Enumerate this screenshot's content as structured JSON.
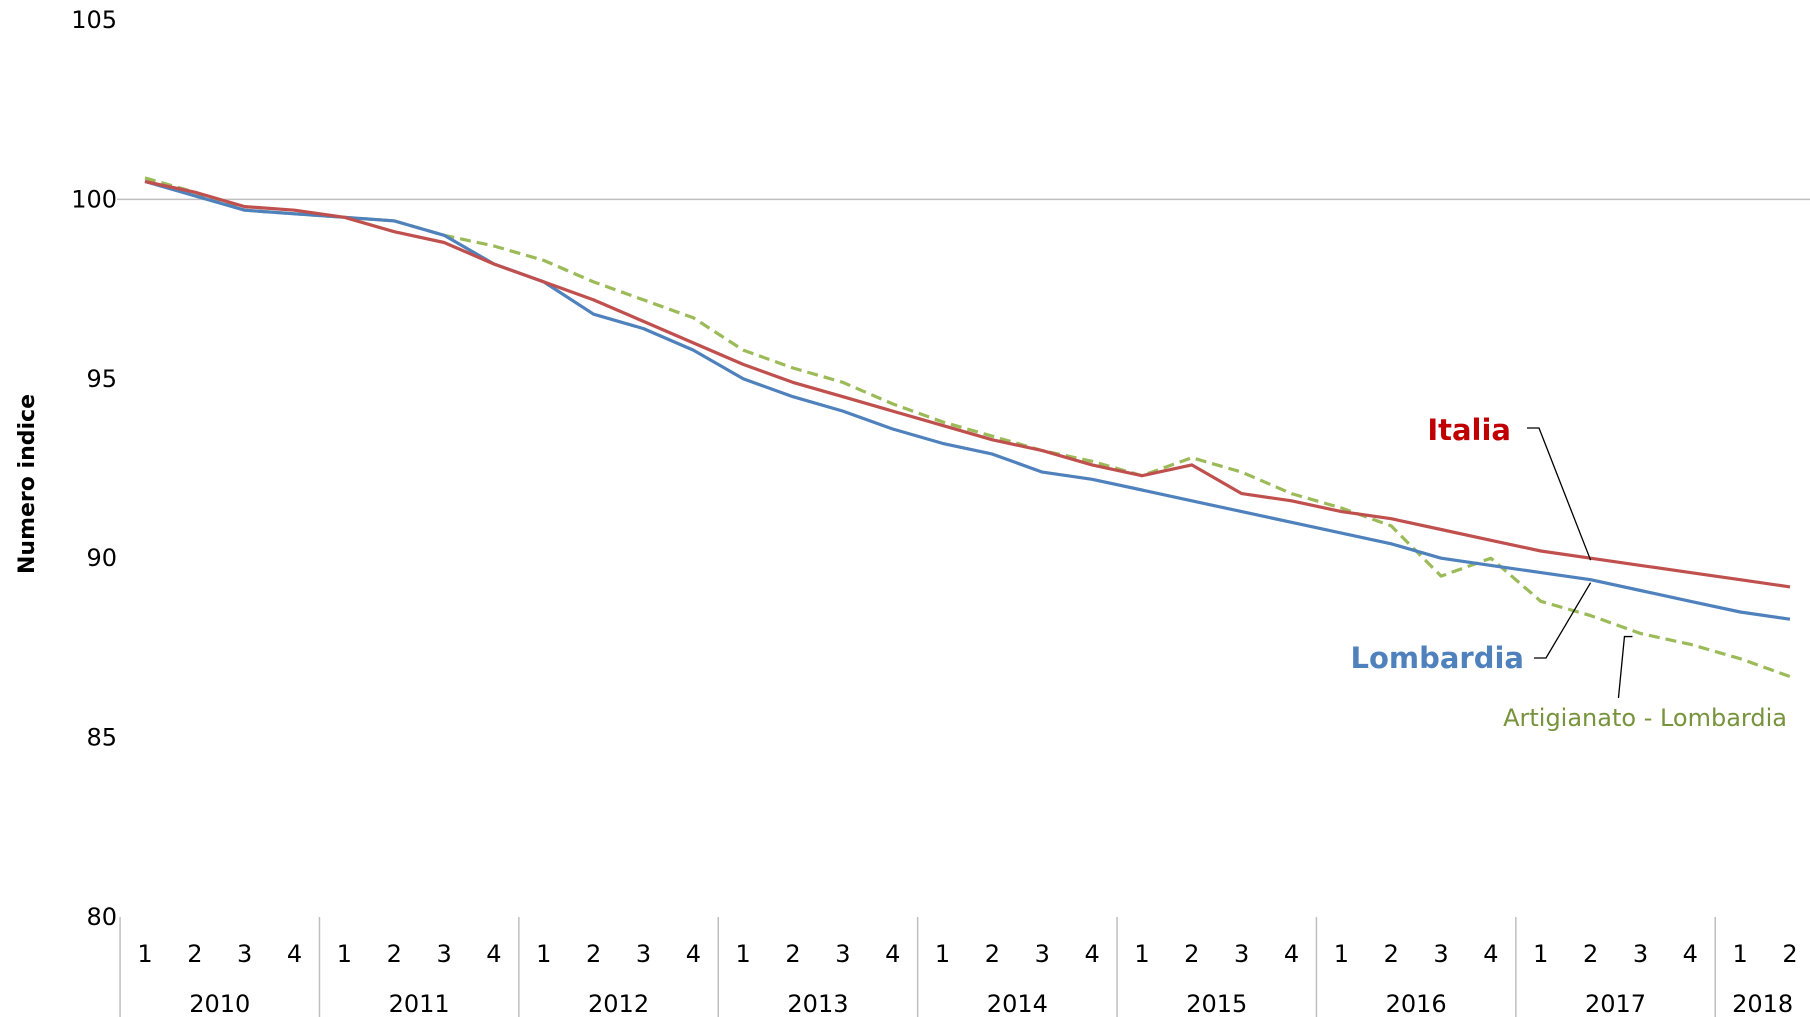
{
  "chart_data": {
    "type": "line",
    "ylabel": "Numero indice",
    "ylim": [
      80,
      105
    ],
    "yticks": [
      80,
      85,
      90,
      95,
      100,
      105
    ],
    "reference_line": 100,
    "x_quarters": [
      "1",
      "2",
      "3",
      "4",
      "1",
      "2",
      "3",
      "4",
      "1",
      "2",
      "3",
      "4",
      "1",
      "2",
      "3",
      "4",
      "1",
      "2",
      "3",
      "4",
      "1",
      "2",
      "3",
      "4",
      "1",
      "2",
      "3",
      "4",
      "1",
      "2",
      "3",
      "4",
      "1",
      "2"
    ],
    "x_years": [
      {
        "label": "2010",
        "quarters": 4
      },
      {
        "label": "2011",
        "quarters": 4
      },
      {
        "label": "2012",
        "quarters": 4
      },
      {
        "label": "2013",
        "quarters": 4
      },
      {
        "label": "2014",
        "quarters": 4
      },
      {
        "label": "2015",
        "quarters": 4
      },
      {
        "label": "2016",
        "quarters": 4
      },
      {
        "label": "2017",
        "quarters": 4
      },
      {
        "label": "2018",
        "quarters": 2
      }
    ],
    "series": [
      {
        "name": "Italia",
        "color": "#c0504d",
        "dash": "solid",
        "values": [
          100.5,
          100.2,
          99.8,
          99.7,
          99.5,
          99.1,
          98.8,
          98.2,
          97.7,
          97.2,
          96.6,
          96.0,
          95.4,
          94.9,
          94.5,
          94.1,
          93.7,
          93.3,
          93.0,
          92.6,
          92.3,
          92.6,
          91.8,
          91.6,
          91.3,
          91.1,
          90.8,
          90.5,
          90.2,
          90.0,
          89.8,
          89.6,
          89.4,
          89.2
        ]
      },
      {
        "name": "Lombardia",
        "color": "#4f81bd",
        "dash": "solid",
        "values": [
          100.5,
          100.1,
          99.7,
          99.6,
          99.5,
          99.4,
          99.0,
          98.2,
          97.7,
          96.8,
          96.4,
          95.8,
          95.0,
          94.5,
          94.1,
          93.6,
          93.2,
          92.9,
          92.4,
          92.2,
          91.9,
          91.6,
          91.3,
          91.0,
          90.7,
          90.4,
          90.0,
          89.8,
          89.6,
          89.4,
          89.1,
          88.8,
          88.5,
          88.3
        ]
      },
      {
        "name": "Artigianato - Lombardia",
        "color": "#9bbb59",
        "dash": "dashed",
        "values": [
          100.6,
          100.2,
          99.7,
          99.6,
          99.5,
          99.4,
          99.0,
          98.7,
          98.3,
          97.7,
          97.2,
          96.7,
          95.8,
          95.3,
          94.9,
          94.3,
          93.8,
          93.4,
          93.0,
          92.7,
          92.3,
          92.8,
          92.4,
          91.8,
          91.4,
          90.9,
          89.5,
          90.0,
          88.8,
          88.4,
          87.9,
          87.6,
          87.2,
          86.7
        ]
      }
    ],
    "annotations": [
      {
        "text": "Italia",
        "series": "Italia",
        "color": "#c00000"
      },
      {
        "text": "Lombardia",
        "series": "Lombardia",
        "color": "#4f81bd"
      },
      {
        "text": "Artigianato - Lombardia",
        "series": "Artigianato - Lombardia",
        "color": "#77933c"
      }
    ]
  }
}
